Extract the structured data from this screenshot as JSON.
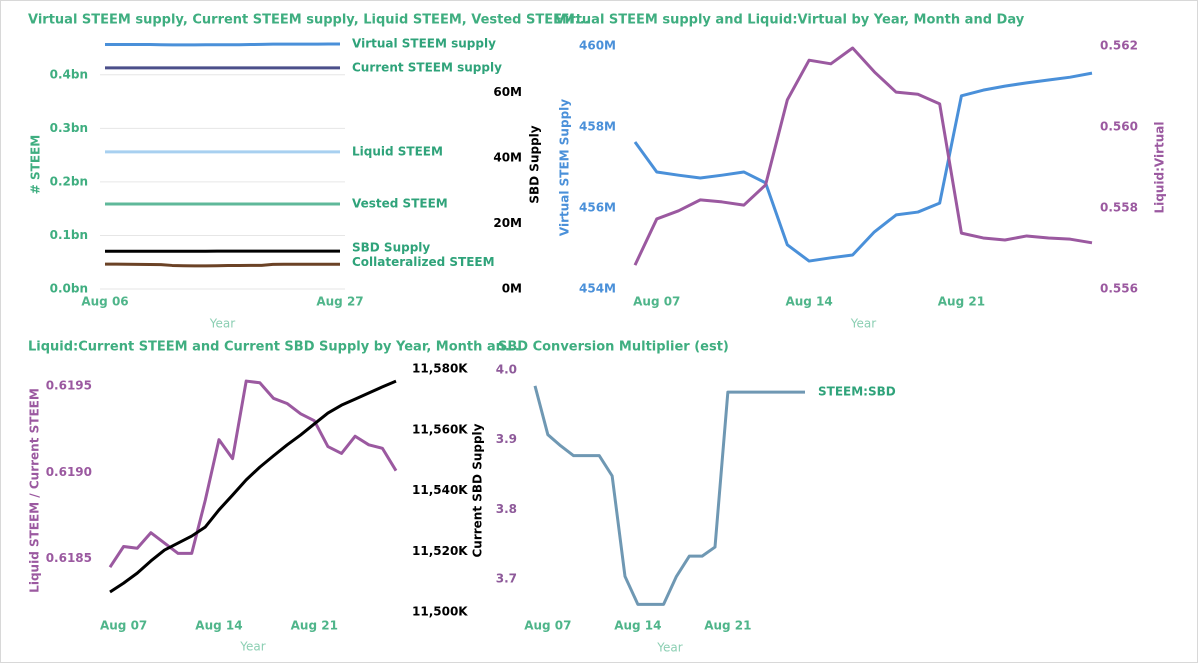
{
  "chart_data": [
    {
      "type": "line",
      "title": "Virtual STEEM supply, Current STEEM supply, Liquid STEEM, Vested STEEM...",
      "x_label": "Year",
      "y_label": "# STEEM",
      "y2_label": "SBD Supply",
      "x": [
        6,
        7,
        8,
        9,
        10,
        11,
        12,
        13,
        14,
        15,
        16,
        17,
        18,
        19,
        20,
        21,
        22,
        23,
        24,
        25,
        26,
        27
      ],
      "xlim": [
        6,
        27
      ],
      "xticks": [
        {
          "value": 6,
          "label": "Aug 06"
        },
        {
          "value": 27,
          "label": "Aug 27"
        }
      ],
      "ylim": [
        0,
        0.465
      ],
      "yticks": [
        {
          "value": 0,
          "label": "0.0bn"
        },
        {
          "value": 0.1,
          "label": "0.1bn"
        },
        {
          "value": 0.2,
          "label": "0.2bn"
        },
        {
          "value": 0.3,
          "label": "0.3bn"
        },
        {
          "value": 0.4,
          "label": "0.4bn"
        }
      ],
      "y2lim": [
        0,
        76
      ],
      "y2ticks": [
        {
          "value": 0,
          "label": "0M"
        },
        {
          "value": 20,
          "label": "20M"
        },
        {
          "value": 40,
          "label": "40M"
        },
        {
          "value": 60,
          "label": "60M"
        }
      ],
      "grid": true,
      "end_labels": true,
      "ycolor": "#3fae80",
      "y2color": "#000000",
      "series": [
        {
          "name": "Virtual STEEM supply",
          "color": "#4a90d9",
          "values": [
            0.4565,
            0.4565,
            0.4565,
            0.4565,
            0.4566,
            0.4561,
            0.4559,
            0.4559,
            0.4559,
            0.4561,
            0.4562,
            0.4562,
            0.4562,
            0.4566,
            0.4568,
            0.4572,
            0.4573,
            0.4573,
            0.4574,
            0.4574,
            0.4575,
            0.4575
          ]
        },
        {
          "name": "Current STEEM supply",
          "color": "#4b4f8a",
          "values": [
            0.413,
            0.413,
            0.413,
            0.413,
            0.413,
            0.413,
            0.413,
            0.413,
            0.413,
            0.413,
            0.413,
            0.413,
            0.413,
            0.413,
            0.413,
            0.413,
            0.413,
            0.413,
            0.413,
            0.413,
            0.413,
            0.413
          ]
        },
        {
          "name": "Liquid STEEM",
          "color": "#a8d0f0",
          "values": [
            0.256,
            0.256,
            0.256,
            0.256,
            0.256,
            0.256,
            0.256,
            0.256,
            0.256,
            0.256,
            0.256,
            0.256,
            0.256,
            0.256,
            0.256,
            0.256,
            0.256,
            0.256,
            0.256,
            0.256,
            0.256,
            0.256
          ]
        },
        {
          "name": "Vested STEEM",
          "color": "#5fb89a",
          "values": [
            0.1588,
            0.1588,
            0.1588,
            0.1588,
            0.1588,
            0.1588,
            0.1588,
            0.1588,
            0.1588,
            0.1588,
            0.1588,
            0.1588,
            0.1588,
            0.1588,
            0.1588,
            0.1588,
            0.1588,
            0.1588,
            0.1588,
            0.1588,
            0.1588,
            0.1588
          ]
        },
        {
          "name": "SBD Supply",
          "color": "#000000",
          "axis": "y2",
          "values": [
            11.507,
            11.51,
            11.513,
            11.517,
            11.52,
            11.523,
            11.525,
            11.528,
            11.534,
            11.539,
            11.544,
            11.548,
            11.551,
            11.555,
            11.558,
            11.562,
            11.566,
            11.568,
            11.57,
            11.572,
            11.574,
            11.576
          ]
        },
        {
          "name": "Collateralized STEEM",
          "color": "#6b4226",
          "values": [
            0.0465,
            0.0465,
            0.0462,
            0.046,
            0.0458,
            0.0455,
            0.044,
            0.0435,
            0.0433,
            0.0433,
            0.0435,
            0.0438,
            0.044,
            0.0441,
            0.0442,
            0.046,
            0.0462,
            0.0463,
            0.0463,
            0.0463,
            0.0462,
            0.0462
          ]
        }
      ]
    },
    {
      "type": "line",
      "title": "Virtual STEEM supply and Liquid:Virtual by Year, Month and Day",
      "x_label": "Year",
      "y_label": "Virtual STEM Supply",
      "y2_label": "Liquid:Virtual",
      "x": [
        6,
        7,
        8,
        9,
        10,
        11,
        12,
        13,
        14,
        15,
        16,
        17,
        18,
        19,
        20,
        21,
        22,
        23,
        24,
        25,
        26,
        27
      ],
      "xlim": [
        6,
        27
      ],
      "xticks": [
        {
          "value": 7,
          "label": "Aug 07"
        },
        {
          "value": 14,
          "label": "Aug 14"
        },
        {
          "value": 21,
          "label": "Aug 21"
        }
      ],
      "ylim": [
        454,
        460
      ],
      "yticks": [
        {
          "value": 454,
          "label": "454M"
        },
        {
          "value": 456,
          "label": "456M"
        },
        {
          "value": 458,
          "label": "458M"
        },
        {
          "value": 460,
          "label": "460M"
        }
      ],
      "y2lim": [
        0.556,
        0.562
      ],
      "y2ticks": [
        0.556,
        {
          "value": 0.558,
          "label": "0.558"
        },
        {
          "value": 0.56,
          "label": "0.560"
        },
        0.562
      ],
      "grid": false,
      "ycolor": "#4a90d9",
      "y2color": "#9b59a0",
      "series": [
        {
          "name": "Virtual STEEM supply",
          "color": "#4a90d9",
          "values": [
            457.63,
            456.89,
            456.81,
            456.74,
            456.81,
            456.89,
            456.62,
            455.09,
            454.69,
            454.77,
            454.84,
            455.41,
            455.83,
            455.9,
            456.12,
            458.77,
            458.91,
            459.01,
            459.09,
            459.16,
            459.23,
            459.33
          ]
        },
        {
          "name": "Liquid:Virtual",
          "color": "#9b59a0",
          "axis": "y2",
          "values": [
            0.55659,
            0.55773,
            0.55793,
            0.5582,
            0.55815,
            0.55807,
            0.55857,
            0.56067,
            0.56165,
            0.56156,
            0.56195,
            0.56136,
            0.56086,
            0.56081,
            0.56057,
            0.55738,
            0.55726,
            0.55721,
            0.55731,
            0.55726,
            0.55723,
            0.55714
          ]
        }
      ]
    },
    {
      "type": "line",
      "title": "Liquid:Current STEEM and Current SBD Supply by Year, Month an...",
      "x_label": "Year",
      "y_label": "Liquid STEEM / Current STEEM",
      "y2_label": "Current SBD Supply",
      "x": [
        6,
        7,
        8,
        9,
        10,
        11,
        12,
        13,
        14,
        15,
        16,
        17,
        18,
        19,
        20,
        21,
        22,
        23,
        24,
        25,
        26,
        27
      ],
      "xlim": [
        6,
        27
      ],
      "xticks": [
        {
          "value": 7,
          "label": "Aug 07"
        },
        {
          "value": 14,
          "label": "Aug 14"
        },
        {
          "value": 21,
          "label": "Aug 21"
        }
      ],
      "ylim": [
        0.61819,
        0.6196
      ],
      "yticks": [
        0.6185,
        {
          "value": 0.619,
          "label": "0.6190"
        },
        0.6195
      ],
      "y2lim": [
        11500,
        11580
      ],
      "y2ticks": [
        {
          "value": 11500,
          "label": "11,500K"
        },
        {
          "value": 11520,
          "label": "11,520K"
        },
        {
          "value": 11540,
          "label": "11,540K"
        },
        {
          "value": 11560,
          "label": "11,560K"
        },
        {
          "value": 11580,
          "label": "11,580K"
        }
      ],
      "grid": false,
      "ycolor": "#9b59a0",
      "y2color": "#000000",
      "series": [
        {
          "name": "Liquid STEEM / Current STEEM",
          "color": "#9b59a0",
          "values": [
            0.61845,
            0.61857,
            0.61856,
            0.61865,
            0.61859,
            0.61853,
            0.61853,
            0.61884,
            0.61919,
            0.61908,
            0.61953,
            0.61952,
            0.61943,
            0.6194,
            0.61934,
            0.6193,
            0.61915,
            0.61911,
            0.61921,
            0.61916,
            0.61914,
            0.61901
          ]
        },
        {
          "name": "Current SBD Supply",
          "color": "#000000",
          "axis": "y2",
          "values": [
            11506.6,
            11509.5,
            11512.8,
            11516.8,
            11520.4,
            11522.7,
            11525,
            11528,
            11533.6,
            11538.5,
            11543.5,
            11547.7,
            11551.4,
            11555,
            11558.3,
            11561.9,
            11565.5,
            11568.1,
            11570.1,
            11572.1,
            11574.1,
            11576
          ]
        }
      ]
    },
    {
      "type": "line",
      "title": "SBD Conversion Multiplier (est)",
      "x_label": "Year",
      "x": [
        6,
        7,
        8,
        9,
        10,
        11,
        12,
        13,
        14,
        15,
        16,
        17,
        18,
        19,
        20,
        21,
        22,
        23,
        24,
        25,
        26,
        27
      ],
      "xlim": [
        6,
        27
      ],
      "xticks": [
        {
          "value": 7,
          "label": "Aug 07"
        },
        {
          "value": 14,
          "label": "Aug 14"
        },
        {
          "value": 21,
          "label": "Aug 21"
        }
      ],
      "ylim": [
        3.653,
        4.014
      ],
      "yticks": [
        3.7,
        3.8,
        3.9,
        {
          "value": 4,
          "label": "4.0"
        }
      ],
      "grid": false,
      "end_labels": true,
      "ycolor": "#8e5a9a",
      "series": [
        {
          "name": "STEEM:SBD",
          "color": "#6f98b3",
          "values": [
            3.977,
            3.907,
            3.891,
            3.877,
            3.877,
            3.877,
            3.848,
            3.704,
            3.664,
            3.664,
            3.664,
            3.704,
            3.733,
            3.733,
            3.746,
            3.968,
            3.968,
            3.968,
            3.968,
            3.968,
            3.968,
            3.968
          ]
        }
      ]
    }
  ]
}
